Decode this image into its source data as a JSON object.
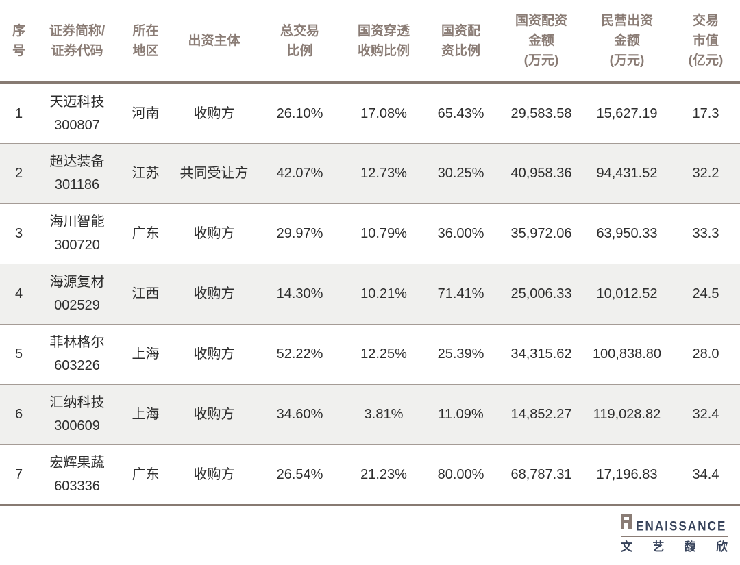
{
  "colors": {
    "header_text": "#8a7c75",
    "heavy_rule": "#877a72",
    "row_divider": "#a59c96",
    "row_alt_bg": "#f0f0ee",
    "body_text": "#2d2d2d",
    "logo_navy": "#36425a"
  },
  "table": {
    "columns": [
      {
        "field": "seq",
        "label": "序\n号"
      },
      {
        "field": "name",
        "label": "证券简称/\n证券代码"
      },
      {
        "field": "region",
        "label": "所在\n地区"
      },
      {
        "field": "role",
        "label": "出资主体"
      },
      {
        "field": "total_ratio",
        "label": "总交易\n比例"
      },
      {
        "field": "penetration_ratio",
        "label": "国资穿透\n收购比例"
      },
      {
        "field": "allocation_ratio",
        "label": "国资配\n资比例"
      },
      {
        "field": "state_amount",
        "label": "国资配资\n金额\n(万元)"
      },
      {
        "field": "private_amount",
        "label": "民营出资\n金额\n(万元)"
      },
      {
        "field": "market_cap",
        "label": "交易\n市值\n(亿元)"
      }
    ],
    "rows": [
      {
        "seq": "1",
        "name": "天迈科技\n300807",
        "region": "河南",
        "role": "收购方",
        "total_ratio": "26.10%",
        "penetration_ratio": "17.08%",
        "allocation_ratio": "65.43%",
        "state_amount": "29,583.58",
        "private_amount": "15,627.19",
        "market_cap": "17.3"
      },
      {
        "seq": "2",
        "name": "超达装备\n301186",
        "region": "江苏",
        "role": "共同受让方",
        "total_ratio": "42.07%",
        "penetration_ratio": "12.73%",
        "allocation_ratio": "30.25%",
        "state_amount": "40,958.36",
        "private_amount": "94,431.52",
        "market_cap": "32.2"
      },
      {
        "seq": "3",
        "name": "海川智能\n300720",
        "region": "广东",
        "role": "收购方",
        "total_ratio": "29.97%",
        "penetration_ratio": "10.79%",
        "allocation_ratio": "36.00%",
        "state_amount": "35,972.06",
        "private_amount": "63,950.33",
        "market_cap": "33.3"
      },
      {
        "seq": "4",
        "name": "海源复材\n002529",
        "region": "江西",
        "role": "收购方",
        "total_ratio": "14.30%",
        "penetration_ratio": "10.21%",
        "allocation_ratio": "71.41%",
        "state_amount": "25,006.33",
        "private_amount": "10,012.52",
        "market_cap": "24.5"
      },
      {
        "seq": "5",
        "name": "菲林格尔\n603226",
        "region": "上海",
        "role": "收购方",
        "total_ratio": "52.22%",
        "penetration_ratio": "12.25%",
        "allocation_ratio": "25.39%",
        "state_amount": "34,315.62",
        "private_amount": "100,838.80",
        "market_cap": "28.0"
      },
      {
        "seq": "6",
        "name": "汇纳科技\n300609",
        "region": "上海",
        "role": "收购方",
        "total_ratio": "34.60%",
        "penetration_ratio": "3.81%",
        "allocation_ratio": "11.09%",
        "state_amount": "14,852.27",
        "private_amount": "119,028.82",
        "market_cap": "32.4"
      },
      {
        "seq": "7",
        "name": "宏辉果蔬\n603336",
        "region": "广东",
        "role": "收购方",
        "total_ratio": "26.54%",
        "penetration_ratio": "21.23%",
        "allocation_ratio": "80.00%",
        "state_amount": "68,787.31",
        "private_amount": "17,196.83",
        "market_cap": "34.4"
      }
    ]
  },
  "chart_data": {
    "type": "table",
    "columns": [
      "序号",
      "证券简称/证券代码",
      "所在地区",
      "出资主体",
      "总交易比例",
      "国资穿透收购比例",
      "国资配资比例",
      "国资配资金额(万元)",
      "民营出资金额(万元)",
      "交易市值(亿元)"
    ],
    "rows": [
      [
        "1",
        "天迈科技 300807",
        "河南",
        "收购方",
        "26.10%",
        "17.08%",
        "65.43%",
        29583.58,
        15627.19,
        17.3
      ],
      [
        "2",
        "超达装备 301186",
        "江苏",
        "共同受让方",
        "42.07%",
        "12.73%",
        "30.25%",
        40958.36,
        94431.52,
        32.2
      ],
      [
        "3",
        "海川智能 300720",
        "广东",
        "收购方",
        "29.97%",
        "10.79%",
        "36.00%",
        35972.06,
        63950.33,
        33.3
      ],
      [
        "4",
        "海源复材 002529",
        "江西",
        "收购方",
        "14.30%",
        "10.21%",
        "71.41%",
        25006.33,
        10012.52,
        24.5
      ],
      [
        "5",
        "菲林格尔 603226",
        "上海",
        "收购方",
        "52.22%",
        "12.25%",
        "25.39%",
        34315.62,
        100838.8,
        28.0
      ],
      [
        "6",
        "汇纳科技 300609",
        "上海",
        "收购方",
        "34.60%",
        "3.81%",
        "11.09%",
        14852.27,
        119028.82,
        32.4
      ],
      [
        "7",
        "宏辉果蔬 603336",
        "广东",
        "收购方",
        "26.54%",
        "21.23%",
        "80.00%",
        68787.31,
        17196.83,
        34.4
      ]
    ]
  },
  "footer": {
    "logo_en": "RENAISSANCE",
    "logo_en_display": "ENAISSANCE",
    "logo_cn": "文艺馥欣"
  }
}
